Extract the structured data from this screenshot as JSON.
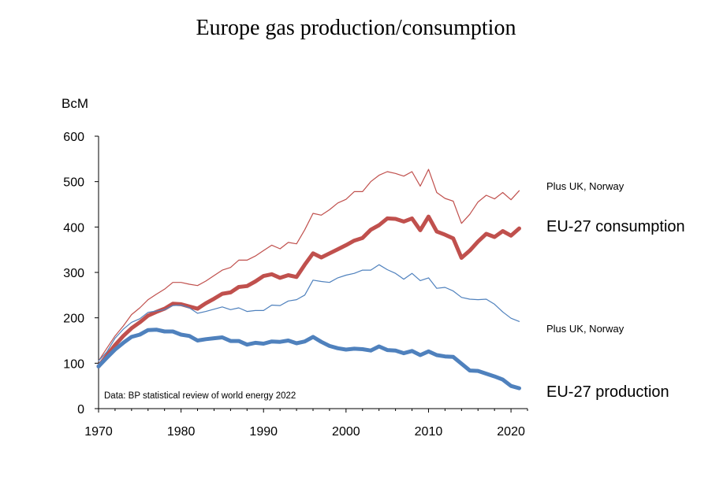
{
  "chart_data": {
    "type": "line",
    "title": "Europe gas production/consumption",
    "ylabel": "BcM",
    "xlim": [
      1970,
      2022
    ],
    "ylim": [
      0,
      600
    ],
    "x_ticks": [
      1970,
      1980,
      1990,
      2000,
      2010,
      2020
    ],
    "y_ticks": [
      0,
      100,
      200,
      300,
      400,
      500,
      600
    ],
    "grid": false,
    "source_note": "Data: BP statistical review of world energy 2022",
    "x": [
      1970,
      1971,
      1972,
      1973,
      1974,
      1975,
      1976,
      1977,
      1978,
      1979,
      1980,
      1981,
      1982,
      1983,
      1984,
      1985,
      1986,
      1987,
      1988,
      1989,
      1990,
      1991,
      1992,
      1993,
      1994,
      1995,
      1996,
      1997,
      1998,
      1999,
      2000,
      2001,
      2002,
      2003,
      2004,
      2005,
      2006,
      2007,
      2008,
      2009,
      2010,
      2011,
      2012,
      2013,
      2014,
      2015,
      2016,
      2017,
      2018,
      2019,
      2020,
      2021
    ],
    "series": [
      {
        "name": "Plus UK, Norway",
        "color": "#c0504d",
        "style": "thin",
        "values": [
          105,
          133,
          160,
          182,
          207,
          222,
          240,
          252,
          263,
          278,
          278,
          274,
          271,
          281,
          293,
          305,
          311,
          327,
          327,
          336,
          348,
          360,
          352,
          366,
          363,
          394,
          430,
          426,
          438,
          453,
          461,
          478,
          478,
          500,
          514,
          522,
          518,
          512,
          522,
          490,
          527,
          476,
          463,
          457,
          408,
          428,
          455,
          470,
          462,
          476,
          460,
          480
        ]
      },
      {
        "name": "EU-27 consumption",
        "color": "#c0504d",
        "style": "thick",
        "values": [
          93,
          117,
          140,
          160,
          177,
          190,
          205,
          213,
          220,
          231,
          230,
          225,
          220,
          232,
          242,
          253,
          256,
          268,
          270,
          280,
          292,
          296,
          288,
          294,
          290,
          317,
          342,
          333,
          342,
          351,
          360,
          370,
          376,
          394,
          404,
          419,
          418,
          412,
          419,
          393,
          423,
          390,
          383,
          375,
          332,
          348,
          368,
          385,
          378,
          391,
          381,
          397
        ]
      },
      {
        "name": "Plus UK, Norway",
        "color": "#4f81bd",
        "style": "thin",
        "values": [
          105,
          125,
          155,
          175,
          190,
          198,
          212,
          215,
          218,
          227,
          228,
          222,
          210,
          214,
          219,
          224,
          218,
          222,
          214,
          216,
          216,
          228,
          227,
          237,
          240,
          250,
          283,
          280,
          278,
          288,
          294,
          298,
          305,
          305,
          317,
          306,
          298,
          285,
          298,
          282,
          288,
          265,
          267,
          259,
          245,
          241,
          240,
          241,
          230,
          213,
          199,
          192
        ]
      },
      {
        "name": "EU-27 production",
        "color": "#4f81bd",
        "style": "thick",
        "values": [
          93,
          112,
          130,
          145,
          158,
          163,
          173,
          174,
          170,
          170,
          163,
          160,
          150,
          153,
          155,
          157,
          149,
          149,
          141,
          145,
          143,
          148,
          147,
          150,
          144,
          148,
          158,
          147,
          138,
          133,
          130,
          132,
          131,
          128,
          137,
          129,
          128,
          122,
          127,
          118,
          126,
          118,
          115,
          114,
          99,
          84,
          83,
          77,
          71,
          64,
          50,
          45
        ]
      }
    ],
    "annotations": [
      "Plus UK, Norway",
      "EU-27 consumption",
      "Plus UK, Norway",
      "EU-27 production"
    ]
  }
}
